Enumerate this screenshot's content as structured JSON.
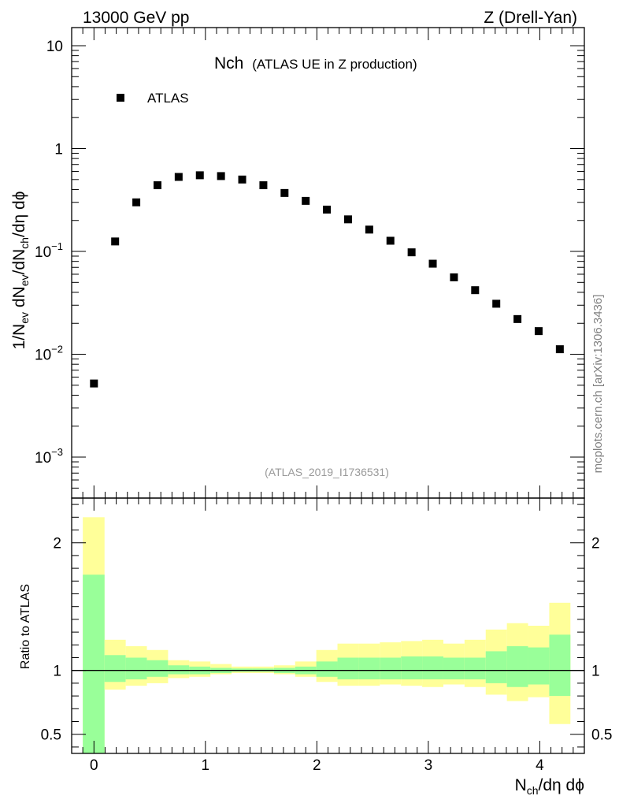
{
  "header": {
    "left": "13000 GeV pp",
    "right": "Z (Drell-Yan)"
  },
  "plot_title": {
    "main": "Nch",
    "sub": "(ATLAS UE in Z production)"
  },
  "analysis_tag": "(ATLAS_2019_I1736531)",
  "side_label": "mcplots.cern.ch [arXiv:1306.3436]",
  "legend": {
    "entry": "ATLAS"
  },
  "colors": {
    "marker": "#000000",
    "band_outer": "#ffff99",
    "band_inner": "#99ff99",
    "tag": "#999999"
  },
  "chart_data": [
    {
      "type": "scatter",
      "panel": "main",
      "yscale": "log",
      "ylim": [
        0.0004,
        15
      ],
      "xlim": [
        -0.2,
        4.4
      ],
      "ylabel": {
        "base": "1/N",
        "s1": "ev",
        "m1": " dN",
        "s2": "ev",
        "m2": "/dN",
        "s3": "ch",
        "m3": "/dη dϕ"
      },
      "ytick_values": [
        0.001,
        0.01,
        0.1,
        1,
        10
      ],
      "ytick_labels": [
        {
          "base": "10",
          "exp": "−3"
        },
        {
          "base": "10",
          "exp": "−2"
        },
        {
          "base": "10",
          "exp": "−1"
        },
        {
          "base": "1",
          "exp": ""
        },
        {
          "base": "10",
          "exp": ""
        }
      ],
      "series": [
        {
          "name": "ATLAS",
          "x": [
            0.0,
            0.19,
            0.38,
            0.57,
            0.76,
            0.95,
            1.14,
            1.33,
            1.52,
            1.71,
            1.9,
            2.09,
            2.28,
            2.47,
            2.66,
            2.85,
            3.04,
            3.23,
            3.42,
            3.61,
            3.8,
            3.99,
            4.18
          ],
          "y": [
            0.0052,
            0.125,
            0.3,
            0.44,
            0.53,
            0.55,
            0.54,
            0.5,
            0.44,
            0.37,
            0.31,
            0.255,
            0.205,
            0.163,
            0.127,
            0.098,
            0.076,
            0.056,
            0.042,
            0.031,
            0.022,
            0.0168,
            0.0112
          ]
        }
      ]
    },
    {
      "type": "area",
      "panel": "ratio",
      "ylim": [
        0.35,
        2.35
      ],
      "xlim": [
        -0.2,
        4.4
      ],
      "ylabel": "Ratio to ATLAS",
      "ytick_labels": [
        "0.5",
        "1",
        "2"
      ],
      "ytick_values": [
        0.5,
        1,
        2
      ],
      "xtick_labels": [
        "0",
        "1",
        "2",
        "3",
        "4"
      ],
      "xtick_values": [
        0,
        1,
        2,
        3,
        4
      ],
      "xlabel": {
        "base": "N",
        "sub": "ch",
        "rest": "/dη dϕ"
      },
      "bin_edges": [
        -0.1,
        0.095,
        0.285,
        0.475,
        0.665,
        0.855,
        1.045,
        1.235,
        1.425,
        1.615,
        1.805,
        1.995,
        2.185,
        2.375,
        2.565,
        2.755,
        2.945,
        3.135,
        3.325,
        3.515,
        3.705,
        3.895,
        4.085,
        4.275
      ],
      "band_outer_hi": [
        2.2,
        1.24,
        1.19,
        1.16,
        1.08,
        1.07,
        1.05,
        1.03,
        1.03,
        1.04,
        1.07,
        1.16,
        1.21,
        1.21,
        1.22,
        1.23,
        1.24,
        1.21,
        1.24,
        1.32,
        1.37,
        1.35,
        1.53
      ],
      "band_outer_lo": [
        0.35,
        0.85,
        0.88,
        0.9,
        0.94,
        0.95,
        0.97,
        0.98,
        0.98,
        0.97,
        0.95,
        0.91,
        0.88,
        0.88,
        0.89,
        0.88,
        0.87,
        0.89,
        0.87,
        0.81,
        0.76,
        0.79,
        0.58
      ],
      "band_inner_hi": [
        1.75,
        1.12,
        1.1,
        1.08,
        1.04,
        1.03,
        1.02,
        1.015,
        1.015,
        1.02,
        1.03,
        1.07,
        1.1,
        1.1,
        1.1,
        1.11,
        1.11,
        1.1,
        1.1,
        1.15,
        1.19,
        1.18,
        1.28
      ],
      "band_inner_lo": [
        0.35,
        0.91,
        0.93,
        0.95,
        0.97,
        0.97,
        0.98,
        0.99,
        0.99,
        0.98,
        0.97,
        0.95,
        0.93,
        0.93,
        0.93,
        0.93,
        0.93,
        0.93,
        0.93,
        0.9,
        0.87,
        0.89,
        0.8
      ],
      "reference": 1
    }
  ]
}
